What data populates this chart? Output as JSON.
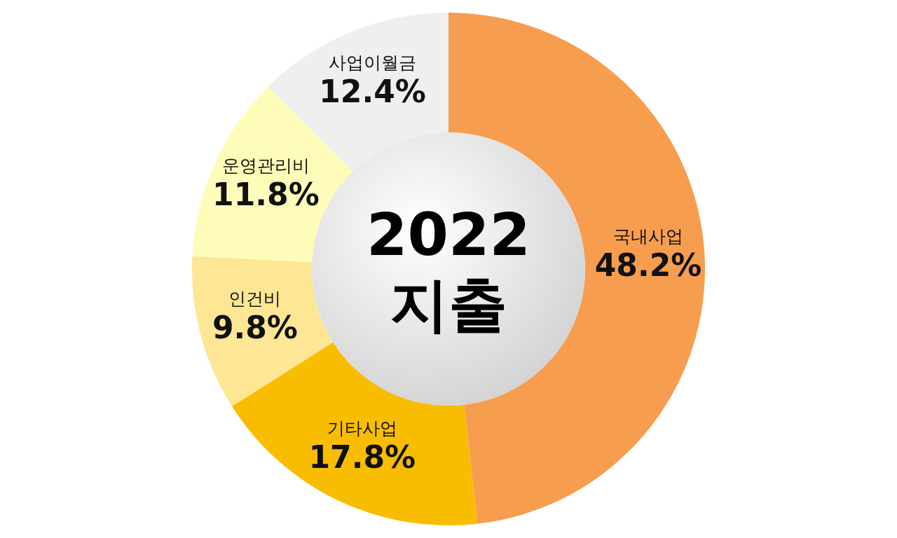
{
  "chart_data": {
    "type": "donut",
    "title": "2022\n지출",
    "categories": [
      "국내사업",
      "기타사업",
      "인건비",
      "운영관리비",
      "사업이월금"
    ],
    "values": [
      48.2,
      17.8,
      9.8,
      11.8,
      12.4
    ],
    "colors": [
      "#f79d4f",
      "#f8bd00",
      "#fde694",
      "#fdfdb9",
      "#efefef"
    ],
    "value_labels": [
      "48.2%",
      "17.8%",
      "9.8%",
      "11.8%",
      "12.4%"
    ]
  }
}
